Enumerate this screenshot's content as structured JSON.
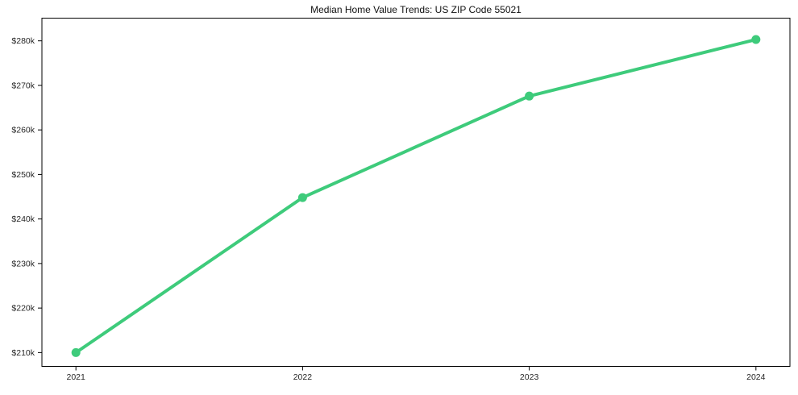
{
  "chart_data": {
    "type": "line",
    "title": "Median Home Value Trends: US ZIP Code 55021",
    "xlabel": "",
    "ylabel": "",
    "x": [
      2021,
      2022,
      2023,
      2024
    ],
    "series": [
      {
        "name": "Median Home Value",
        "values": [
          210000,
          244800,
          267600,
          280300
        ]
      }
    ],
    "x_tick_labels": [
      "2021",
      "2022",
      "2023",
      "2024"
    ],
    "y_ticks": [
      210000,
      220000,
      230000,
      240000,
      250000,
      260000,
      270000,
      280000
    ],
    "y_tick_labels": [
      "$210k",
      "$220k",
      "$230k",
      "$240k",
      "$250k",
      "$260k",
      "$270k",
      "$280k"
    ],
    "xlim": [
      2020.85,
      2024.15
    ],
    "ylim": [
      206900,
      285100
    ],
    "grid": false,
    "legend": "none",
    "colors": {
      "line": "#3ecb7b",
      "marker": "#3ecb7b",
      "spine": "#000000",
      "tick_text": "#262626",
      "title_text": "#111111",
      "background": "#ffffff"
    }
  }
}
